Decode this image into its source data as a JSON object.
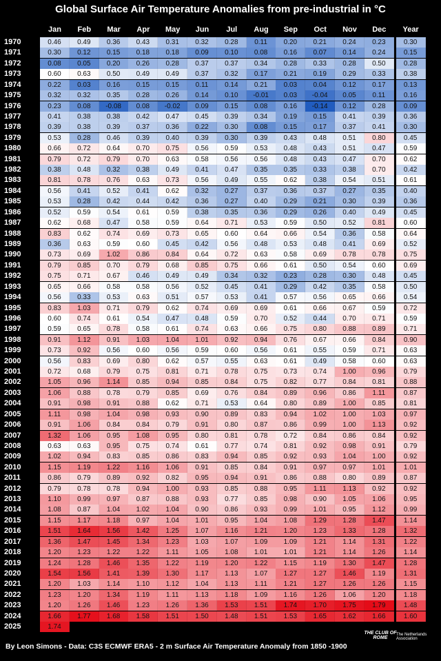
{
  "title": "Global Surface Air Temperature Anomalies from pre-industrial in °C",
  "table": {
    "header": [
      "Jan",
      "Feb",
      "Mar",
      "Apr",
      "May",
      "Jun",
      "Jul",
      "Aug",
      "Sep",
      "Oct",
      "Nov",
      "Dec",
      "Year"
    ],
    "rows": [
      {
        "year": "1970",
        "cells": [
          "0.46",
          "0.49",
          "0.36",
          "0.43",
          "0.31",
          "0.32",
          "0.28",
          "0.11",
          "0.20",
          "0.21",
          "0.24",
          "0.23",
          "0.30"
        ]
      },
      {
        "year": "1971",
        "cells": [
          "0.30",
          "0.12",
          "0.15",
          "0.18",
          "0.18",
          "0.09",
          "0.10",
          "0.08",
          "0.16",
          "0.07",
          "0.14",
          "0.24",
          "0.15"
        ]
      },
      {
        "year": "1972",
        "cells": [
          "0.08",
          "0.05",
          "0.20",
          "0.26",
          "0.28",
          "0.37",
          "0.37",
          "0.34",
          "0.28",
          "0.33",
          "0.28",
          "0.50",
          "0.28"
        ]
      },
      {
        "year": "1973",
        "cells": [
          "0.60",
          "0.63",
          "0.50",
          "0.49",
          "0.49",
          "0.37",
          "0.32",
          "0.17",
          "0.21",
          "0.19",
          "0.29",
          "0.33",
          "0.38"
        ]
      },
      {
        "year": "1974",
        "cells": [
          "0.22",
          "0.03",
          "0.16",
          "0.15",
          "0.15",
          "0.11",
          "0.14",
          "0.21",
          "0.03",
          "0.04",
          "0.12",
          "0.17",
          "0.13"
        ]
      },
      {
        "year": "1975",
        "cells": [
          "0.32",
          "0.32",
          "0.35",
          "0.28",
          "0.26",
          "0.14",
          "0.10",
          "-0.01",
          "0.03",
          "-0.04",
          "0.05",
          "0.11",
          "0.16"
        ]
      },
      {
        "year": "1976",
        "cells": [
          "0.23",
          "0.08",
          "-0.08",
          "0.08",
          "-0.02",
          "0.09",
          "0.15",
          "0.08",
          "0.16",
          "-0.14",
          "0.12",
          "0.28",
          "0.09"
        ]
      },
      {
        "year": "1977",
        "cells": [
          "0.41",
          "0.38",
          "0.38",
          "0.42",
          "0.47",
          "0.45",
          "0.39",
          "0.34",
          "0.19",
          "0.15",
          "0.41",
          "0.39",
          "0.36"
        ]
      },
      {
        "year": "1978",
        "cells": [
          "0.39",
          "0.38",
          "0.39",
          "0.37",
          "0.36",
          "0.22",
          "0.30",
          "0.08",
          "0.15",
          "0.17",
          "0.37",
          "0.41",
          "0.30"
        ]
      },
      {
        "year": "1979",
        "cells": [
          "0.53",
          "0.28",
          "0.46",
          "0.39",
          "0.40",
          "0.39",
          "0.30",
          "0.39",
          "0.43",
          "0.48",
          "0.51",
          "0.80",
          "0.45"
        ]
      },
      {
        "year": "1980",
        "cells": [
          "0.66",
          "0.72",
          "0.64",
          "0.70",
          "0.75",
          "0.56",
          "0.59",
          "0.53",
          "0.48",
          "0.43",
          "0.51",
          "0.47",
          "0.59"
        ]
      },
      {
        "year": "1981",
        "cells": [
          "0.79",
          "0.72",
          "0.79",
          "0.70",
          "0.63",
          "0.58",
          "0.56",
          "0.56",
          "0.48",
          "0.43",
          "0.47",
          "0.70",
          "0.62"
        ]
      },
      {
        "year": "1982",
        "cells": [
          "0.38",
          "0.48",
          "0.32",
          "0.38",
          "0.49",
          "0.41",
          "0.47",
          "0.35",
          "0.35",
          "0.33",
          "0.38",
          "0.70",
          "0.42"
        ]
      },
      {
        "year": "1983",
        "cells": [
          "0.81",
          "0.78",
          "0.76",
          "0.63",
          "0.73",
          "0.56",
          "0.49",
          "0.55",
          "0.62",
          "0.38",
          "0.54",
          "0.51",
          "0.61"
        ]
      },
      {
        "year": "1984",
        "cells": [
          "0.56",
          "0.41",
          "0.52",
          "0.41",
          "0.62",
          "0.32",
          "0.27",
          "0.37",
          "0.36",
          "0.37",
          "0.27",
          "0.35",
          "0.40"
        ]
      },
      {
        "year": "1985",
        "cells": [
          "0.53",
          "0.28",
          "0.42",
          "0.44",
          "0.42",
          "0.36",
          "0.27",
          "0.40",
          "0.29",
          "0.21",
          "0.30",
          "0.39",
          "0.36"
        ]
      },
      {
        "year": "1986",
        "cells": [
          "0.52",
          "0.59",
          "0.54",
          "0.61",
          "0.59",
          "0.38",
          "0.35",
          "0.36",
          "0.29",
          "0.26",
          "0.40",
          "0.49",
          "0.45"
        ]
      },
      {
        "year": "1987",
        "cells": [
          "0.62",
          "0.68",
          "0.47",
          "0.58",
          "0.59",
          "0.64",
          "0.71",
          "0.53",
          "0.59",
          "0.50",
          "0.52",
          "0.81",
          "0.60"
        ]
      },
      {
        "year": "1988",
        "cells": [
          "0.83",
          "0.62",
          "0.74",
          "0.69",
          "0.73",
          "0.65",
          "0.60",
          "0.64",
          "0.66",
          "0.54",
          "0.36",
          "0.58",
          "0.64"
        ]
      },
      {
        "year": "1989",
        "cells": [
          "0.36",
          "0.63",
          "0.59",
          "0.60",
          "0.45",
          "0.42",
          "0.56",
          "0.48",
          "0.53",
          "0.48",
          "0.41",
          "0.69",
          "0.52"
        ]
      },
      {
        "year": "1990",
        "cells": [
          "0.73",
          "0.69",
          "1.02",
          "0.86",
          "0.84",
          "0.64",
          "0.72",
          "0.63",
          "0.58",
          "0.69",
          "0.78",
          "0.78",
          "0.75"
        ]
      },
      {
        "year": "1991",
        "cells": [
          "0.79",
          "0.85",
          "0.70",
          "0.79",
          "0.68",
          "0.85",
          "0.75",
          "0.66",
          "0.61",
          "0.50",
          "0.54",
          "0.60",
          "0.69"
        ]
      },
      {
        "year": "1992",
        "cells": [
          "0.75",
          "0.71",
          "0.67",
          "0.46",
          "0.49",
          "0.49",
          "0.34",
          "0.32",
          "0.23",
          "0.28",
          "0.30",
          "0.48",
          "0.45"
        ]
      },
      {
        "year": "1993",
        "cells": [
          "0.65",
          "0.66",
          "0.58",
          "0.58",
          "0.56",
          "0.52",
          "0.45",
          "0.41",
          "0.29",
          "0.42",
          "0.35",
          "0.58",
          "0.50"
        ]
      },
      {
        "year": "1994",
        "cells": [
          "0.56",
          "0.33",
          "0.53",
          "0.63",
          "0.51",
          "0.57",
          "0.53",
          "0.41",
          "0.57",
          "0.56",
          "0.65",
          "0.66",
          "0.54"
        ]
      },
      {
        "year": "1995",
        "cells": [
          "0.83",
          "1.03",
          "0.71",
          "0.79",
          "0.62",
          "0.74",
          "0.69",
          "0.69",
          "0.61",
          "0.66",
          "0.67",
          "0.59",
          "0.72"
        ]
      },
      {
        "year": "1996",
        "cells": [
          "0.60",
          "0.74",
          "0.61",
          "0.54",
          "0.47",
          "0.48",
          "0.59",
          "0.70",
          "0.52",
          "0.44",
          "0.70",
          "0.71",
          "0.59"
        ]
      },
      {
        "year": "1997",
        "cells": [
          "0.59",
          "0.65",
          "0.78",
          "0.58",
          "0.61",
          "0.74",
          "0.63",
          "0.66",
          "0.75",
          "0.80",
          "0.88",
          "0.89",
          "0.71"
        ]
      },
      {
        "year": "1998",
        "cells": [
          "0.91",
          "1.12",
          "0.91",
          "1.03",
          "1.04",
          "1.01",
          "0.92",
          "0.94",
          "0.76",
          "0.67",
          "0.66",
          "0.84",
          "0.90"
        ]
      },
      {
        "year": "1999",
        "cells": [
          "0.73",
          "0.92",
          "0.56",
          "0.60",
          "0.56",
          "0.59",
          "0.60",
          "0.56",
          "0.61",
          "0.55",
          "0.59",
          "0.71",
          "0.63"
        ]
      },
      {
        "year": "2000",
        "cells": [
          "0.56",
          "0.83",
          "0.69",
          "0.80",
          "0.62",
          "0.57",
          "0.55",
          "0.63",
          "0.61",
          "0.49",
          "0.58",
          "0.60",
          "0.63"
        ]
      },
      {
        "year": "2001",
        "cells": [
          "0.72",
          "0.68",
          "0.79",
          "0.75",
          "0.81",
          "0.71",
          "0.78",
          "0.75",
          "0.73",
          "0.74",
          "1.00",
          "0.96",
          "0.79"
        ]
      },
      {
        "year": "2002",
        "cells": [
          "1.05",
          "0.96",
          "1.14",
          "0.85",
          "0.94",
          "0.85",
          "0.84",
          "0.75",
          "0.82",
          "0.77",
          "0.84",
          "0.81",
          "0.88"
        ]
      },
      {
        "year": "2003",
        "cells": [
          "1.06",
          "0.88",
          "0.78",
          "0.79",
          "0.85",
          "0.69",
          "0.76",
          "0.84",
          "0.89",
          "0.96",
          "0.86",
          "1.11",
          "0.87"
        ]
      },
      {
        "year": "2004",
        "cells": [
          "0.91",
          "0.98",
          "0.91",
          "0.88",
          "0.62",
          "0.71",
          "0.53",
          "0.64",
          "0.80",
          "0.89",
          "1.00",
          "0.85",
          "0.81"
        ]
      },
      {
        "year": "2005",
        "cells": [
          "1.11",
          "0.98",
          "1.04",
          "0.98",
          "0.93",
          "0.90",
          "0.89",
          "0.83",
          "0.94",
          "1.02",
          "1.00",
          "1.03",
          "0.97"
        ]
      },
      {
        "year": "2006",
        "cells": [
          "0.91",
          "1.06",
          "0.84",
          "0.84",
          "0.79",
          "0.91",
          "0.80",
          "0.87",
          "0.86",
          "0.99",
          "1.00",
          "1.13",
          "0.92"
        ]
      },
      {
        "year": "2007",
        "cells": [
          "1.32",
          "1.06",
          "0.95",
          "1.08",
          "0.95",
          "0.80",
          "0.81",
          "0.78",
          "0.72",
          "0.84",
          "0.86",
          "0.84",
          "0.92"
        ]
      },
      {
        "year": "2008",
        "cells": [
          "0.63",
          "0.63",
          "0.95",
          "0.75",
          "0.74",
          "0.61",
          "0.77",
          "0.74",
          "0.81",
          "0.92",
          "0.98",
          "0.91",
          "0.79"
        ]
      },
      {
        "year": "2009",
        "cells": [
          "1.02",
          "0.94",
          "0.83",
          "0.85",
          "0.86",
          "0.83",
          "0.94",
          "0.85",
          "0.92",
          "0.93",
          "1.04",
          "1.00",
          "0.92"
        ]
      },
      {
        "year": "2010",
        "cells": [
          "1.15",
          "1.19",
          "1.22",
          "1.16",
          "1.06",
          "0.91",
          "0.85",
          "0.84",
          "0.91",
          "0.97",
          "0.97",
          "1.01",
          "1.01"
        ]
      },
      {
        "year": "2011",
        "cells": [
          "0.86",
          "0.79",
          "0.89",
          "0.92",
          "0.82",
          "0.95",
          "0.94",
          "0.91",
          "0.86",
          "0.88",
          "0.80",
          "0.89",
          "0.87"
        ]
      },
      {
        "year": "2012",
        "cells": [
          "0.79",
          "0.78",
          "0.78",
          "0.94",
          "1.00",
          "0.93",
          "0.85",
          "0.88",
          "0.95",
          "1.11",
          "1.13",
          "0.92",
          "0.92"
        ]
      },
      {
        "year": "2013",
        "cells": [
          "1.10",
          "0.99",
          "0.97",
          "0.87",
          "0.88",
          "0.93",
          "0.77",
          "0.85",
          "0.98",
          "0.90",
          "1.05",
          "1.06",
          "0.95"
        ]
      },
      {
        "year": "2014",
        "cells": [
          "1.08",
          "0.87",
          "1.04",
          "1.02",
          "1.04",
          "0.90",
          "0.86",
          "0.93",
          "0.99",
          "1.01",
          "0.95",
          "1.12",
          "0.99"
        ]
      },
      {
        "year": "2015",
        "cells": [
          "1.15",
          "1.17",
          "1.18",
          "0.97",
          "1.04",
          "1.01",
          "0.95",
          "1.04",
          "1.08",
          "1.29",
          "1.28",
          "1.47",
          "1.14"
        ]
      },
      {
        "year": "2016",
        "cells": [
          "1.51",
          "1.64",
          "1.56",
          "1.42",
          "1.25",
          "1.07",
          "1.16",
          "1.21",
          "1.20",
          "1.23",
          "1.33",
          "1.28",
          "1.32"
        ]
      },
      {
        "year": "2017",
        "cells": [
          "1.36",
          "1.47",
          "1.45",
          "1.34",
          "1.23",
          "1.03",
          "1.07",
          "1.09",
          "1.09",
          "1.21",
          "1.14",
          "1.31",
          "1.22"
        ]
      },
      {
        "year": "2018",
        "cells": [
          "1.20",
          "1.23",
          "1.22",
          "1.22",
          "1.11",
          "1.05",
          "1.08",
          "1.01",
          "1.01",
          "1.21",
          "1.14",
          "1.26",
          "1.14"
        ]
      },
      {
        "year": "2019",
        "cells": [
          "1.24",
          "1.28",
          "1.46",
          "1.35",
          "1.22",
          "1.19",
          "1.20",
          "1.22",
          "1.15",
          "1.19",
          "1.30",
          "1.47",
          "1.28"
        ]
      },
      {
        "year": "2020",
        "cells": [
          "1.54",
          "1.56",
          "1.41",
          "1.39",
          "1.30",
          "1.17",
          "1.13",
          "1.07",
          "1.27",
          "1.27",
          "1.46",
          "1.19",
          "1.31"
        ]
      },
      {
        "year": "2021",
        "cells": [
          "1.20",
          "1.03",
          "1.14",
          "1.10",
          "1.12",
          "1.04",
          "1.13",
          "1.11",
          "1.21",
          "1.27",
          "1.26",
          "1.26",
          "1.15"
        ]
      },
      {
        "year": "2022",
        "cells": [
          "1.23",
          "1.20",
          "1.34",
          "1.19",
          "1.11",
          "1.13",
          "1.18",
          "1.09",
          "1.16",
          "1.26",
          "1.06",
          "1.20",
          "1.18"
        ]
      },
      {
        "year": "2023",
        "cells": [
          "1.20",
          "1.26",
          "1.46",
          "1.23",
          "1.26",
          "1.36",
          "1.53",
          "1.51",
          "1.74",
          "1.70",
          "1.75",
          "1.79",
          "1.48"
        ]
      },
      {
        "year": "2024",
        "cells": [
          "1.66",
          "1.77",
          "1.68",
          "1.58",
          "1.51",
          "1.50",
          "1.48",
          "1.51",
          "1.53",
          "1.65",
          "1.62",
          "1.66",
          "1.60"
        ]
      },
      {
        "year": "2025",
        "cells": [
          "1.74"
        ]
      }
    ]
  },
  "footer": {
    "credit": "By Leon Simons - Data: C3S ECMWF ERA5 - 2 m Surface Air Temperature Anomaly from 1850 -1900",
    "logo_text": "THE CLUB OF ROME",
    "logo_subtext": "The Netherlands Association"
  }
}
